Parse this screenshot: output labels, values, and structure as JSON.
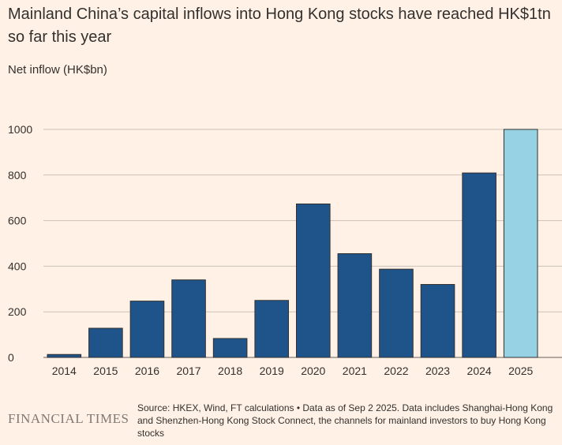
{
  "header": {
    "title": "Mainland China’s capital inflows into Hong Kong stocks have reached HK$1tn so far this year",
    "subtitle": "Net inflow (HK$bn)"
  },
  "footer": {
    "brand": "FINANCIAL TIMES",
    "source": "Source: HKEX, Wind, FT calculations • Data as of Sep 2 2025. Data includes Shanghai-Hong Kong and Shenzhen-Hong Kong Stock Connect, the channels for mainland investors to buy Hong Kong stocks"
  },
  "colors": {
    "background": "#fff1e5",
    "bar": "#1f548b",
    "bar_highlight": "#96d2e3",
    "grid": "#ccc1b7",
    "text": "#33302e"
  },
  "chart_data": {
    "type": "bar",
    "categories": [
      "2014",
      "2015",
      "2016",
      "2017",
      "2018",
      "2019",
      "2020",
      "2021",
      "2022",
      "2023",
      "2024",
      "2025"
    ],
    "values": [
      13,
      128,
      247,
      340,
      83,
      250,
      673,
      455,
      387,
      320,
      809,
      1000
    ],
    "highlight_index": 11,
    "title": "Mainland China’s capital inflows into Hong Kong stocks have reached HK$1tn so far this year",
    "ylabel": "Net inflow (HK$bn)",
    "xlabel": "",
    "ylim": [
      0,
      1000
    ],
    "yticks": [
      0,
      200,
      400,
      600,
      800,
      1000
    ],
    "grid": true,
    "legend": "none"
  }
}
